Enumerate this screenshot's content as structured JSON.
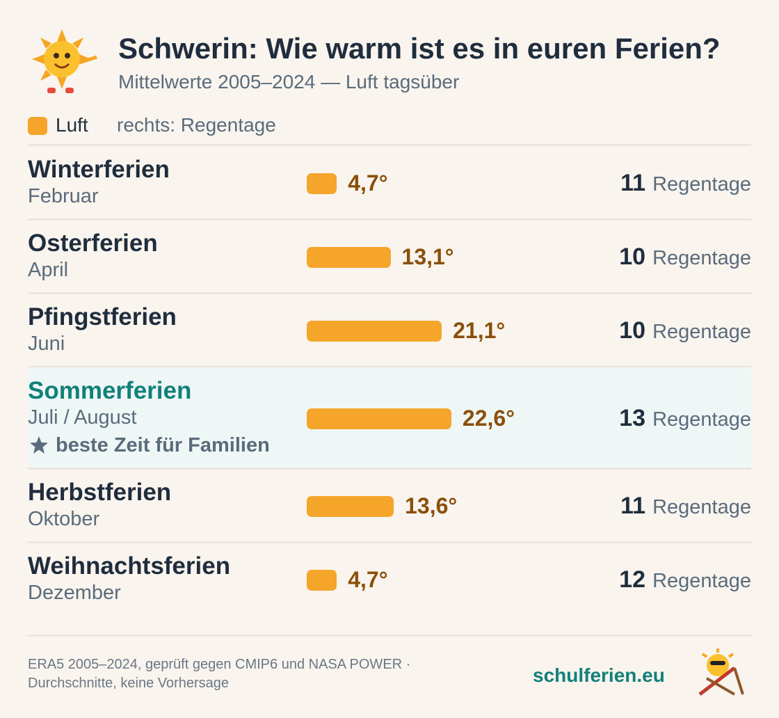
{
  "header": {
    "title": "Schwerin: Wie warm ist es in euren Ferien?",
    "subtitle": "Mittelwerte 2005–2024 — Luft tagsüber"
  },
  "legend": {
    "label": "Luft",
    "note": "rechts: Regentage"
  },
  "chart_data": {
    "type": "bar",
    "color": "#f4a52a",
    "categories": [
      "Winterferien",
      "Osterferien",
      "Pfingstferien",
      "Sommerferien",
      "Herbstferien",
      "Weihnachtsferien"
    ],
    "subtitles": [
      "Februar",
      "April",
      "Juni",
      "Juli / August",
      "Oktober",
      "Dezember"
    ],
    "values": [
      4.7,
      13.1,
      21.1,
      22.6,
      13.6,
      4.7
    ],
    "value_labels": [
      "4,7°",
      "13,1°",
      "21,1°",
      "22,6°",
      "13,6°",
      "4,7°"
    ],
    "rain_days": [
      11,
      10,
      10,
      13,
      11,
      12
    ],
    "rain_unit": "Regentage",
    "highlight": {
      "index": 3,
      "note": "beste Zeit für Familien"
    }
  },
  "footer": {
    "source": [
      "ERA5 2005–2024, geprüft gegen CMIP6 und NASA POWER ·",
      "Durchschnitte, keine Vorhersage"
    ],
    "brand": "schulferien.eu"
  }
}
